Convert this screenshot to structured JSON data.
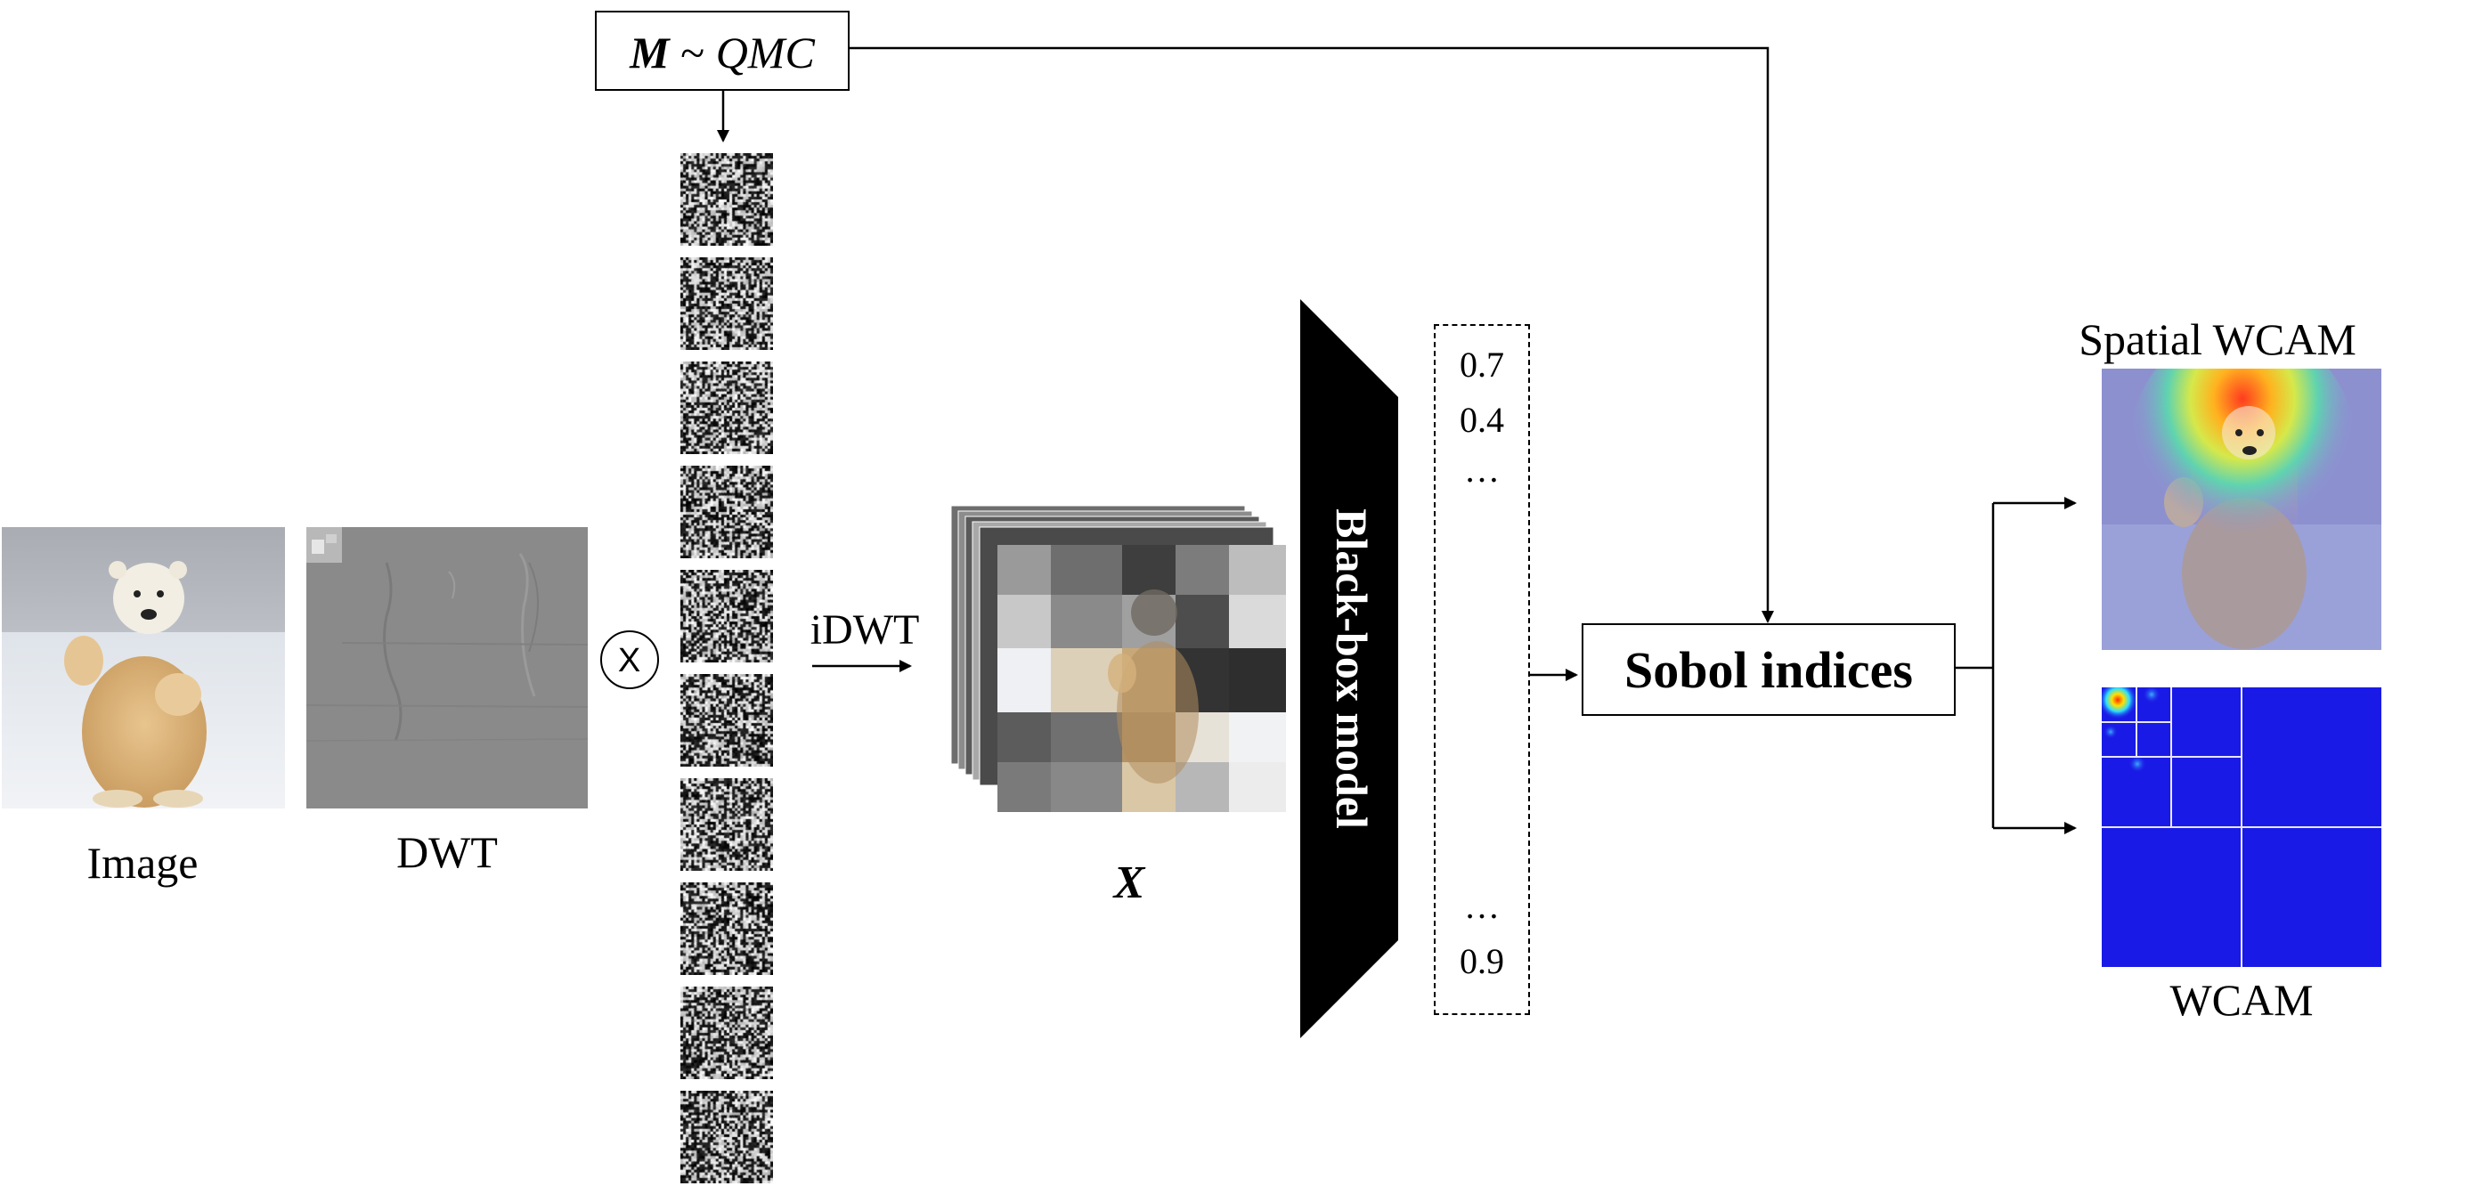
{
  "mask_box": {
    "bold_symbol": "M",
    "rest": " ~ ",
    "italic_text": "QMC"
  },
  "labels": {
    "image": "Image",
    "dwt": "DWT",
    "multiply": "X",
    "idwt": "iDWT",
    "x_tensor": "X",
    "model": "Black-box model",
    "sobol": "Sobol indices",
    "spatial_wcam": "Spatial WCAM",
    "wcam": "WCAM"
  },
  "outputs": {
    "values": [
      "0.7",
      "0.4",
      "…",
      "…",
      "0.9"
    ]
  },
  "mask_count": 10,
  "colors": {
    "line": "#000000",
    "model_fill": "#000000",
    "wcam_blue": "#1a1ae6",
    "grid_line": "#e6e6ff"
  }
}
